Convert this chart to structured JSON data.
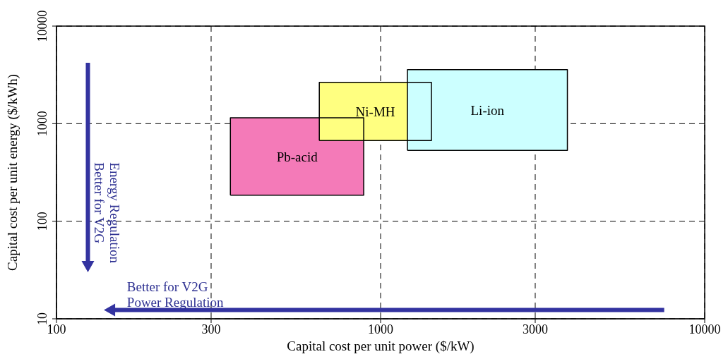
{
  "chart_data": {
    "type": "area",
    "xlabel": "Capital cost per unit power ($/kW)",
    "ylabel": "Capital cost per unit energy ($/kWh)",
    "log": "xy",
    "grid": true,
    "xlim": [
      100,
      10000
    ],
    "ylim": [
      10,
      10000
    ],
    "xticks": [
      100,
      300,
      1000,
      3000,
      10000
    ],
    "yticks": [
      10,
      100,
      1000,
      10000
    ],
    "series": [
      {
        "name": "Pb-acid",
        "color": "#f47ab8",
        "x": [
          344,
          887,
          887,
          344,
          344
        ],
        "values": [
          185,
          185,
          1150,
          1150,
          185
        ]
      },
      {
        "name": "Ni-MH",
        "color": "#ffff80",
        "x": [
          647,
          1435,
          1435,
          647,
          647
        ],
        "values": [
          672,
          672,
          2650,
          2650,
          672
        ]
      },
      {
        "name": "Li-ion",
        "color": "#ccffff",
        "x": [
          1210,
          3770,
          3770,
          1210,
          1210
        ],
        "values": [
          533,
          533,
          3580,
          3580,
          533
        ]
      }
    ],
    "annotations": [
      "Better for V2G\nEnergy Regulation",
      "Better for V2G\nPower Regulation"
    ]
  }
}
